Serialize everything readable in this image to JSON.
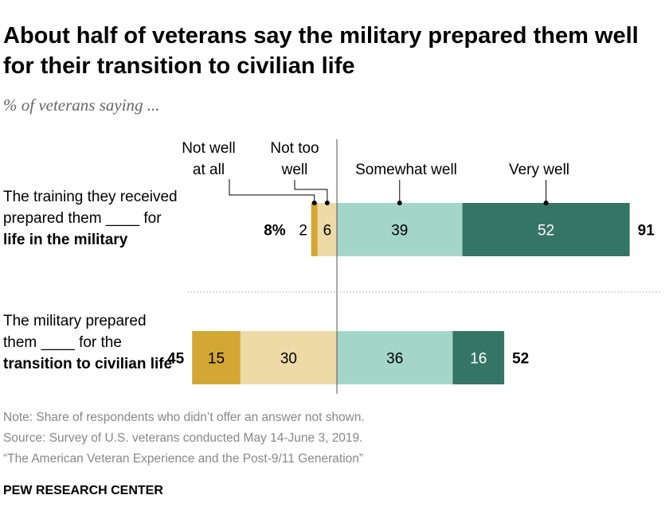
{
  "title": "About half of veterans say the military prepared them well for their transition to civilian life",
  "subtitle": "% of veterans saying ...",
  "chart_data": {
    "type": "bar",
    "orientation": "horizontal-diverging",
    "categories": [
      {
        "pre": "The training they received prepared them ____ for ",
        "bold": "life in the military"
      },
      {
        "pre": "The military prepared them ____ for the ",
        "bold": "transition to civilian life"
      }
    ],
    "series": [
      {
        "name": "Not well at all",
        "side": "negative",
        "color": "#d3a733",
        "values": [
          2,
          15
        ]
      },
      {
        "name": "Not too well",
        "side": "negative",
        "color": "#eedaa7",
        "values": [
          6,
          30
        ]
      },
      {
        "name": "Somewhat well",
        "side": "positive",
        "color": "#a3d5c9",
        "values": [
          39,
          36
        ]
      },
      {
        "name": "Very well",
        "side": "positive",
        "color": "#357565",
        "values": [
          52,
          16
        ]
      }
    ],
    "net_negative": [
      "8%",
      "45"
    ],
    "net_positive": [
      "91",
      "52"
    ],
    "legend_labels": [
      "Not well\nat all",
      "Not too\nwell",
      "Somewhat well",
      "Very well"
    ]
  },
  "notes": [
    "Note: Share of respondents who didn’t offer an answer not shown.",
    "Source: Survey of U.S. veterans conducted May 14-June 3, 2019.",
    "“The American Veteran Experience and the Post-9/11 Generation”"
  ],
  "brand": "PEW RESEARCH CENTER"
}
